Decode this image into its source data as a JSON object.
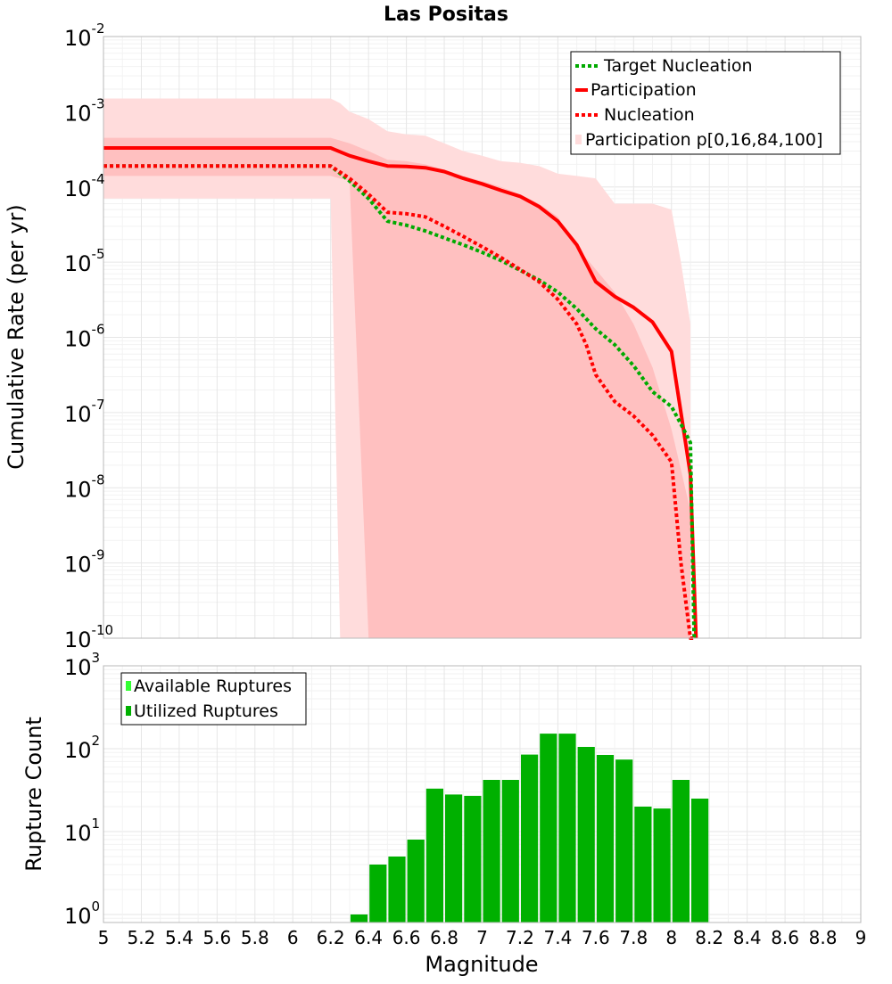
{
  "chart_data": [
    {
      "type": "line",
      "title": "Las Positas",
      "xlabel": "",
      "ylabel": "Cumulative Rate (per yr)",
      "xlim": [
        5,
        9
      ],
      "ylim": [
        1e-10,
        0.01
      ],
      "yscale": "log",
      "grid": true,
      "legend_position": "top-right",
      "y_tick_exponents": [
        "-2",
        "-3",
        "-4",
        "-5",
        "-6",
        "-7",
        "-8",
        "-9",
        "-10"
      ],
      "bands": [
        {
          "name": "Participation p[0,16,84,100]",
          "color": "#ffdcdc",
          "x": [
            5.0,
            6.2,
            6.25,
            6.3,
            6.4,
            6.5,
            6.6,
            6.7,
            6.8,
            6.9,
            7.0,
            7.1,
            7.2,
            7.3,
            7.4,
            7.5,
            7.6,
            7.7,
            7.8,
            7.9,
            8.0,
            8.05,
            8.1
          ],
          "upper": [
            0.0015,
            0.0015,
            0.0013,
            0.001,
            0.0008,
            0.00055,
            0.0005,
            0.00048,
            0.00038,
            0.0003,
            0.00026,
            0.00022,
            0.00021,
            0.00019,
            0.00015,
            0.00014,
            0.00013,
            6e-05,
            6e-05,
            6e-05,
            5e-05,
            1e-05,
            1.5e-06
          ],
          "lower": [
            7e-05,
            7e-05,
            1e-10,
            1e-10,
            1e-10,
            1e-10,
            1e-10,
            1e-10,
            1e-10,
            1e-10,
            1e-10,
            1e-10,
            1e-10,
            1e-10,
            1e-10,
            1e-10,
            1e-10,
            1e-10,
            1e-10,
            1e-10,
            1e-10,
            1e-10,
            1e-10
          ]
        },
        {
          "name": "",
          "color": "#ffc0c0",
          "x": [
            5.0,
            6.2,
            6.3,
            6.4,
            6.5,
            6.6,
            6.7,
            6.8,
            6.9,
            7.0,
            7.1,
            7.2,
            7.3,
            7.4,
            7.5,
            7.6,
            7.7,
            7.8,
            7.9,
            8.0,
            8.1
          ],
          "upper": [
            0.00045,
            0.00045,
            0.00038,
            0.0003,
            0.00023,
            0.00022,
            0.0002,
            0.00017,
            0.00014,
            0.00012,
            0.0001,
            8e-05,
            6e-05,
            4e-05,
            1.6e-05,
            8e-06,
            4e-06,
            1.5e-06,
            4e-07,
            6e-08,
            5e-09
          ],
          "lower": [
            0.00014,
            0.00014,
            0.00012,
            1e-10,
            1e-10,
            1e-10,
            1e-10,
            1e-10,
            1e-10,
            1e-10,
            1e-10,
            1e-10,
            1e-10,
            1e-10,
            1e-10,
            1e-10,
            1e-10,
            1e-10,
            1e-10,
            1e-10,
            1e-10
          ]
        }
      ],
      "series": [
        {
          "name": "Target Nucleation",
          "color": "#00aa00",
          "dashed": true,
          "x": [
            5.0,
            6.2,
            6.3,
            6.4,
            6.5,
            6.6,
            6.7,
            6.8,
            6.9,
            7.0,
            7.1,
            7.2,
            7.3,
            7.4,
            7.5,
            7.6,
            7.7,
            7.8,
            7.9,
            8.0,
            8.05,
            8.1,
            8.12
          ],
          "y": [
            0.00019,
            0.00019,
            0.00012,
            7e-05,
            3.5e-05,
            3.1e-05,
            2.6e-05,
            2.1e-05,
            1.7e-05,
            1.35e-05,
            1.05e-05,
            7.8e-06,
            5.8e-06,
            4e-06,
            2.4e-06,
            1.3e-06,
            8e-07,
            4.2e-07,
            1.9e-07,
            1.2e-07,
            7e-08,
            4e-08,
            1e-10
          ]
        },
        {
          "name": "Participation",
          "color": "#ff0000",
          "dashed": false,
          "x": [
            5.0,
            6.2,
            6.3,
            6.4,
            6.5,
            6.6,
            6.7,
            6.8,
            6.9,
            7.0,
            7.1,
            7.2,
            7.3,
            7.4,
            7.5,
            7.6,
            7.7,
            7.8,
            7.9,
            8.0,
            8.05,
            8.1,
            8.13
          ],
          "y": [
            0.00033,
            0.00033,
            0.00026,
            0.00022,
            0.00019,
            0.000187,
            0.00018,
            0.00016,
            0.00013,
            0.00011,
            9e-05,
            7.5e-05,
            5.5e-05,
            3.5e-05,
            1.7e-05,
            5.5e-06,
            3.5e-06,
            2.5e-06,
            1.6e-06,
            6.5e-07,
            1e-07,
            1.5e-08,
            1e-10
          ]
        },
        {
          "name": "Nucleation",
          "color": "#ff0000",
          "dashed": true,
          "x": [
            5.0,
            6.2,
            6.3,
            6.4,
            6.5,
            6.6,
            6.7,
            6.8,
            6.9,
            7.0,
            7.1,
            7.2,
            7.3,
            7.4,
            7.5,
            7.55,
            7.6,
            7.7,
            7.8,
            7.9,
            8.0,
            8.05,
            8.1,
            8.12
          ],
          "y": [
            0.00019,
            0.00019,
            0.00013,
            8e-05,
            4.6e-05,
            4.4e-05,
            4e-05,
            3e-05,
            2.2e-05,
            1.6e-05,
            1.15e-05,
            8e-06,
            5.5e-06,
            3.2e-06,
            1.5e-06,
            8e-07,
            3.2e-07,
            1.4e-07,
            9e-08,
            5e-08,
            2.2e-08,
            1e-09,
            1e-10,
            1e-10
          ]
        }
      ]
    },
    {
      "type": "bar",
      "title": "",
      "xlabel": "Magnitude",
      "ylabel": "Rupture Count",
      "xlim": [
        5,
        9
      ],
      "ylim": [
        0.8,
        1000
      ],
      "yscale": "log",
      "grid": true,
      "legend_position": "top-left",
      "bin_width": 0.1,
      "x_tick_labels": [
        "5",
        "5.2",
        "5.4",
        "5.6",
        "5.8",
        "6",
        "6.2",
        "6.4",
        "6.6",
        "6.8",
        "7",
        "7.2",
        "7.4",
        "7.6",
        "7.8",
        "8",
        "8.2",
        "8.4",
        "8.6",
        "8.8",
        "9"
      ],
      "y_tick_exponents": [
        "0",
        "1",
        "2",
        "3"
      ],
      "legend": [
        {
          "name": "Available Ruptures",
          "color": "#33ff33"
        },
        {
          "name": "Utilized Ruptures",
          "color": "#00b000"
        }
      ],
      "bin_centers": [
        6.35,
        6.45,
        6.55,
        6.65,
        6.75,
        6.85,
        6.95,
        7.05,
        7.15,
        7.25,
        7.35,
        7.45,
        7.55,
        7.65,
        7.75,
        7.85,
        7.95,
        8.05,
        8.15
      ],
      "values": [
        1,
        4,
        5,
        8,
        33,
        28,
        27,
        42,
        42,
        85,
        152,
        152,
        105,
        84,
        74,
        20,
        19,
        42,
        25
      ]
    }
  ]
}
